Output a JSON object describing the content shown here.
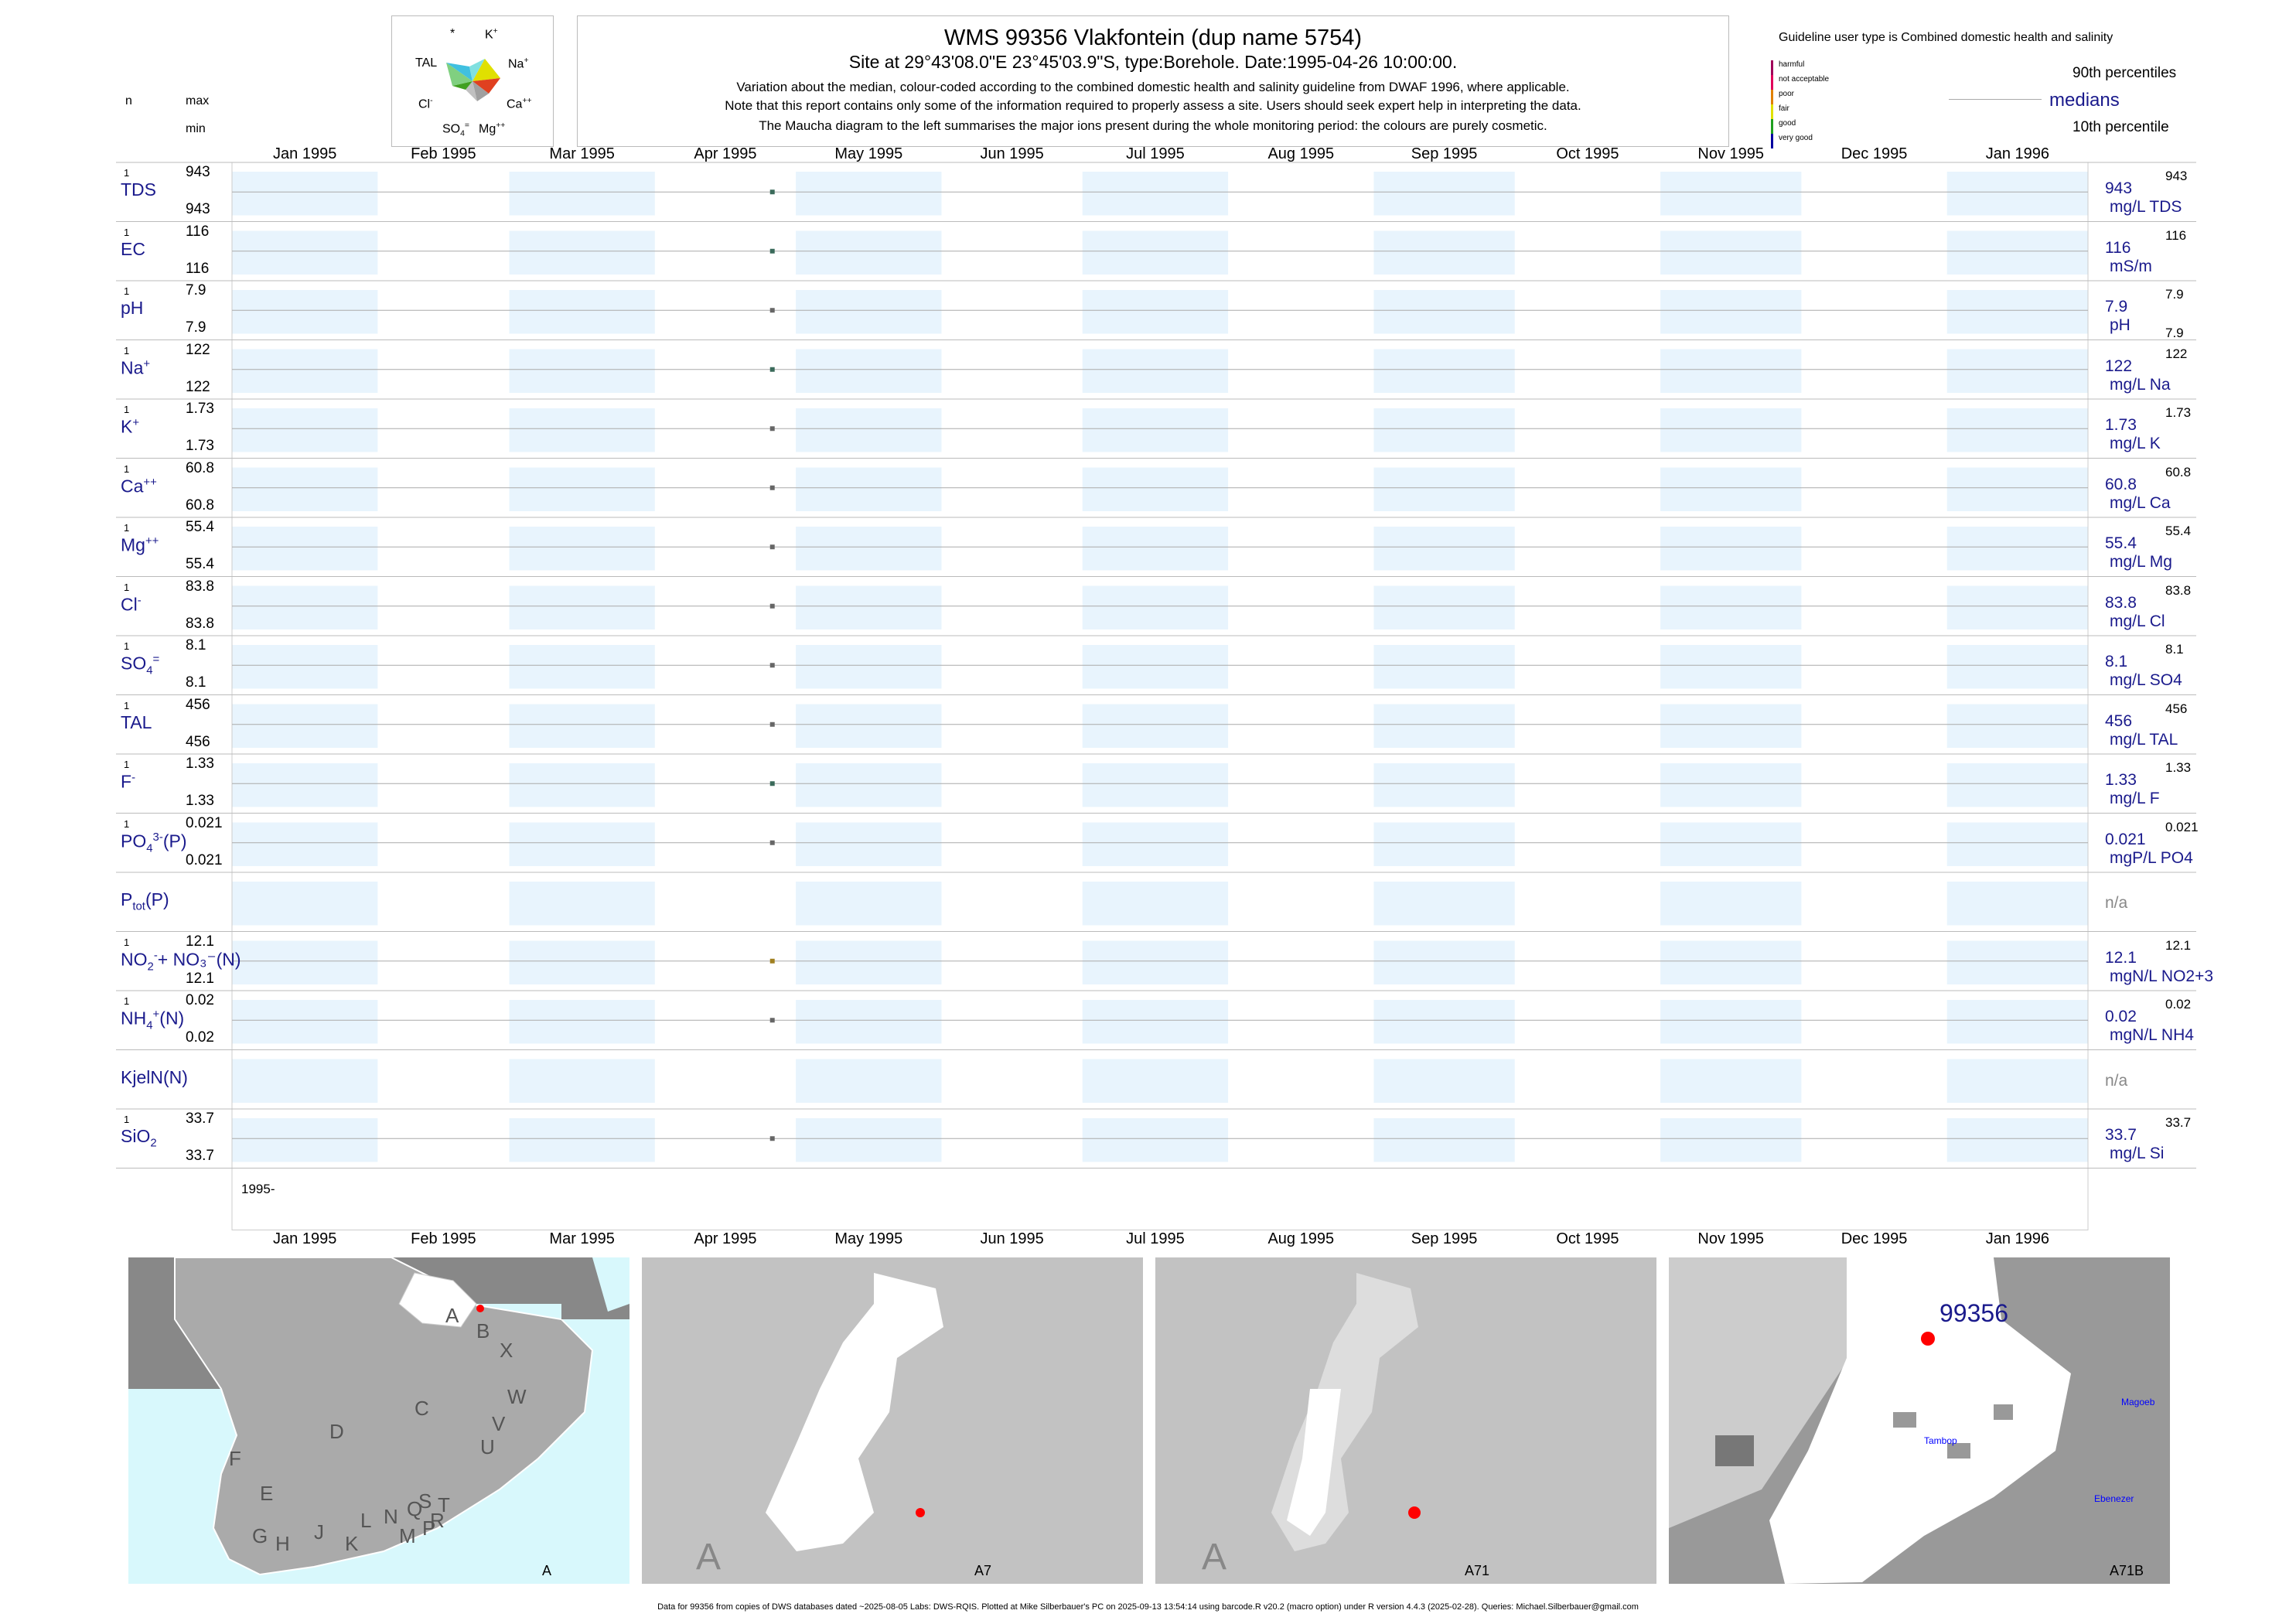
{
  "header": {
    "title": "WMS 99356  Vlakfontein (dup name 5754)",
    "site": "Site at 29°43'08.0\"E 23°45'03.9\"S, type:Borehole. Date:1995-04-26 10:00:00.",
    "note1": "Variation about the median,  colour-coded according to the combined domestic health and salinity guideline from DWAF 1996, where applicable.",
    "note2": "Note that this report contains only some of the information required to properly assess a site. Users should seek expert help in interpreting the data.",
    "note3": "The Maucha diagram to the left summarises the major ions present during the whole monitoring period: the colours are purely cosmetic."
  },
  "left_header": {
    "n": "n",
    "max": "max",
    "min": "min"
  },
  "maucha": {
    "labels": {
      "star": "*",
      "k": "K",
      "tal": "TAL",
      "na": "Na",
      "cl": "Cl",
      "ca": "Ca",
      "so4": "SO",
      "mg": "Mg"
    }
  },
  "legend": {
    "guideline": "Guideline user type is Combined domestic health and salinity",
    "classes": [
      "harmful",
      "not acceptable",
      "poor",
      "fair",
      "good",
      "very good"
    ],
    "class_colors": [
      "#a0005a",
      "#e0005a",
      "#e08000",
      "#e0e000",
      "#20a020",
      "#0000a0"
    ],
    "p90": "90th percentiles",
    "medians": "medians",
    "p10": "10th percentile"
  },
  "months": [
    "Jan 1995",
    "Feb 1995",
    "Mar 1995",
    "Apr 1995",
    "May 1995",
    "Jun 1995",
    "Jul 1995",
    "Aug 1995",
    "Sep 1995",
    "Oct 1995",
    "Nov 1995",
    "Dec 1995",
    "Jan 1996"
  ],
  "year_label": "1995-",
  "footer": "Data for 99356 from copies of DWS databases dated ~2025-08-05 Labs: DWS-RQIS. Plotted at Mike Silberbauer's PC on 2025-09-13 13:54:14 using barcode.R v20.2 (macro option) under R version 4.4.3 (2025-02-28). Queries: Michael.Silberbauer@gmail.com",
  "chart_data": {
    "type": "scatter",
    "x_range": [
      "1995-01-01",
      "1996-01-31"
    ],
    "sample_date": "1995-04-26",
    "parameters": [
      {
        "label": "TDS",
        "n": "1",
        "max": "943",
        "min": "943",
        "median": "943",
        "p90": "943",
        "p10": "",
        "unit": "mg/L TDS",
        "value": 943,
        "color": "#3a6a5a"
      },
      {
        "label": "EC",
        "n": "1",
        "max": "116",
        "min": "116",
        "median": "116",
        "p90": "116",
        "p10": "",
        "unit": "mS/m",
        "value": 116,
        "color": "#3a6a5a"
      },
      {
        "label": "pH",
        "n": "1",
        "max": "7.9",
        "min": "7.9",
        "median": "7.9",
        "p90": "7.9",
        "p10": "7.9",
        "unit": "pH",
        "value": 7.9,
        "color": "#666666"
      },
      {
        "label": "Na",
        "sup": "+",
        "n": "1",
        "max": "122",
        "min": "122",
        "median": "122",
        "p90": "122",
        "p10": "",
        "unit": "mg/L Na",
        "value": 122,
        "color": "#3a6a5a"
      },
      {
        "label": "K",
        "sup": "+",
        "n": "1",
        "max": "1.73",
        "min": "1.73",
        "median": "1.73",
        "p90": "1.73",
        "p10": "",
        "unit": "mg/L K",
        "value": 1.73,
        "color": "#666666"
      },
      {
        "label": "Ca",
        "sup": "++",
        "n": "1",
        "max": "60.8",
        "min": "60.8",
        "median": "60.8",
        "p90": "60.8",
        "p10": "",
        "unit": "mg/L Ca",
        "value": 60.8,
        "color": "#666666"
      },
      {
        "label": "Mg",
        "sup": "++",
        "n": "1",
        "max": "55.4",
        "min": "55.4",
        "median": "55.4",
        "p90": "55.4",
        "p10": "",
        "unit": "mg/L Mg",
        "value": 55.4,
        "color": "#666666"
      },
      {
        "label": "Cl",
        "sup": "-",
        "n": "1",
        "max": "83.8",
        "min": "83.8",
        "median": "83.8",
        "p90": "83.8",
        "p10": "",
        "unit": "mg/L Cl",
        "value": 83.8,
        "color": "#666666"
      },
      {
        "label": "SO",
        "sub": "4",
        "sup": "=",
        "n": "1",
        "max": "8.1",
        "min": "8.1",
        "median": "8.1",
        "p90": "8.1",
        "p10": "",
        "unit": "mg/L SO4",
        "value": 8.1,
        "color": "#666666"
      },
      {
        "label": "TAL",
        "n": "1",
        "max": "456",
        "min": "456",
        "median": "456",
        "p90": "456",
        "p10": "",
        "unit": "mg/L TAL",
        "value": 456,
        "color": "#666666"
      },
      {
        "label": "F",
        "sup": "-",
        "n": "1",
        "max": "1.33",
        "min": "1.33",
        "median": "1.33",
        "p90": "1.33",
        "p10": "",
        "unit": "mg/L F",
        "value": 1.33,
        "color": "#3a6a5a"
      },
      {
        "label": "PO",
        "sub": "4",
        "sup": "3-",
        "suffix": "(P)",
        "n": "1",
        "max": "0.021",
        "min": "0.021",
        "median": "0.021",
        "p90": "0.021",
        "p10": "",
        "unit": "mgP/L PO4",
        "value": 0.021,
        "color": "#666666"
      },
      {
        "label": "P",
        "sub": "tot",
        "suffix": "(P)",
        "n": "",
        "max": "",
        "min": "",
        "median": "n/a",
        "p90": "",
        "p10": "",
        "unit": "",
        "value": null,
        "color": "#666666"
      },
      {
        "label": "NO",
        "sub": "2",
        "sup": "-",
        "suffix": "+ NO₃⁻(N)",
        "n": "1",
        "max": "12.1",
        "min": "12.1",
        "median": "12.1",
        "p90": "12.1",
        "p10": "",
        "unit": "mgN/L NO2+3",
        "value": 12.1,
        "color": "#a08020"
      },
      {
        "label": "NH",
        "sub": "4",
        "sup": "+",
        "suffix": "(N)",
        "n": "1",
        "max": "0.02",
        "min": "0.02",
        "median": "0.02",
        "p90": "0.02",
        "p10": "",
        "unit": "mgN/L NH4",
        "value": 0.02,
        "color": "#666666"
      },
      {
        "label": "KjelN(N)",
        "n": "",
        "max": "",
        "min": "",
        "median": "n/a",
        "p90": "",
        "p10": "",
        "unit": "",
        "value": null,
        "color": "#666666"
      },
      {
        "label": "SiO",
        "sub": "2",
        "n": "1",
        "max": "33.7",
        "min": "33.7",
        "median": "33.7",
        "p90": "33.7",
        "p10": "",
        "unit": "mg/L Si",
        "value": 33.7,
        "color": "#666666"
      }
    ]
  },
  "maps": [
    {
      "label": "A",
      "letters": [
        "A",
        "B",
        "X",
        "W",
        "C",
        "D",
        "V",
        "U",
        "F",
        "E",
        "T",
        "G",
        "H",
        "J",
        "K",
        "L",
        "N",
        "M",
        "P",
        "Q",
        "R",
        "S"
      ]
    },
    {
      "label": "A7",
      "big": "A"
    },
    {
      "label": "A71",
      "big": "A"
    },
    {
      "label": "A71B",
      "site": "99356",
      "towns": [
        "Magoeb",
        "Tambop",
        "Ebenezer"
      ]
    }
  ]
}
